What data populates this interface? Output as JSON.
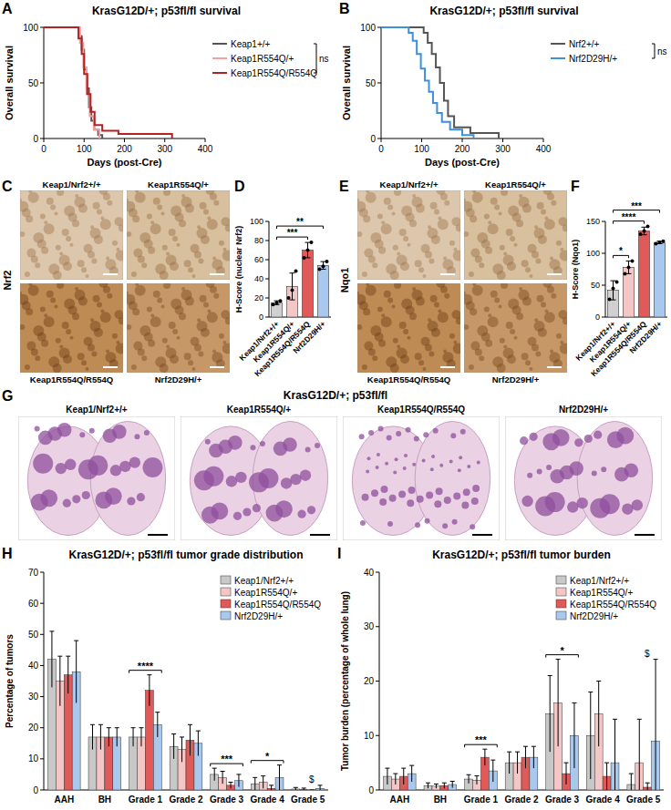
{
  "chart_data": [
    {
      "panel": "A",
      "type": "line",
      "line_style": "step",
      "title": "KrasG12D/+; p53fl/fl survival",
      "x_label": "Days (post-Cre)",
      "y_label": "Overall survival",
      "xlim": [
        0,
        400
      ],
      "xticks": [
        0,
        100,
        200,
        300,
        400
      ],
      "ylim": [
        0,
        100
      ],
      "yticks": [
        0,
        50,
        100
      ],
      "legend": "right",
      "annotation": "ns",
      "series": [
        {
          "name": "Keap1+/+",
          "color": "#555555",
          "x": [
            0,
            80,
            88,
            94,
            100,
            106,
            112,
            118,
            125,
            135,
            145
          ],
          "values": [
            100,
            100,
            92,
            80,
            62,
            45,
            28,
            16,
            8,
            3,
            0
          ]
        },
        {
          "name": "Keap1R554Q/+",
          "color": "#f4a0a0",
          "x": [
            0,
            82,
            90,
            98,
            106,
            114,
            124,
            138
          ],
          "values": [
            100,
            100,
            86,
            64,
            40,
            20,
            8,
            0
          ]
        },
        {
          "name": "Keap1R554Q/R554Q",
          "color": "#b22222",
          "x": [
            0,
            76,
            86,
            94,
            100,
            108,
            116,
            126,
            145,
            185,
            318
          ],
          "values": [
            100,
            100,
            90,
            76,
            58,
            40,
            24,
            12,
            7,
            4,
            0
          ]
        }
      ]
    },
    {
      "panel": "B",
      "type": "line",
      "line_style": "step",
      "title": "KrasG12D/+; p53fl/fl survival",
      "x_label": "Days (post-Cre)",
      "y_label": "Overall survival",
      "xlim": [
        0,
        400
      ],
      "xticks": [
        0,
        100,
        200,
        300,
        400
      ],
      "ylim": [
        0,
        100
      ],
      "yticks": [
        0,
        50,
        100
      ],
      "legend": "right",
      "annotation": "ns",
      "series": [
        {
          "name": "Nrf2+/+",
          "color": "#555555",
          "x": [
            0,
            95,
            105,
            115,
            125,
            135,
            145,
            155,
            165,
            180,
            220,
            290
          ],
          "values": [
            100,
            100,
            95,
            86,
            76,
            64,
            50,
            34,
            20,
            10,
            5,
            0
          ]
        },
        {
          "name": "Nrf2D29H/+",
          "color": "#3d8fe0",
          "x": [
            0,
            68,
            78,
            88,
            98,
            108,
            118,
            128,
            138,
            150,
            170,
            200,
            228
          ],
          "values": [
            100,
            95,
            88,
            76,
            63,
            52,
            42,
            32,
            23,
            15,
            8,
            3,
            0
          ]
        }
      ]
    },
    {
      "panel": "D",
      "type": "bar",
      "y_label": "H-Score (nuclear Nrf2)",
      "categories": [
        "Keap1/Nrf2+/+",
        "Keap1R554Q/+",
        "Keap1R554Q/R554Q",
        "Nrf2D29H/+"
      ],
      "values": [
        15,
        32,
        70,
        54
      ],
      "errors": [
        2,
        14,
        8,
        4
      ],
      "points": [
        [
          13,
          15,
          17
        ],
        [
          20,
          28,
          48
        ],
        [
          62,
          70,
          78
        ],
        [
          50,
          53,
          58
        ]
      ],
      "colors": [
        "#d0d0d0",
        "#f5c6c6",
        "#e05a5a",
        "#a8c8ee"
      ],
      "ylim": [
        0,
        100
      ],
      "yticks": [
        0,
        20,
        40,
        60,
        80,
        100
      ],
      "significance": [
        {
          "between": [
            "Keap1/Nrf2+/+",
            "Keap1R554Q/R554Q"
          ],
          "label": "***"
        },
        {
          "between": [
            "Keap1/Nrf2+/+",
            "Nrf2D29H/+"
          ],
          "label": "**"
        }
      ]
    },
    {
      "panel": "F",
      "type": "bar",
      "y_label": "H-Score (Nqo1)",
      "categories": [
        "Keap1/Nrf2+/+",
        "Keap1R554Q/+",
        "Keap1R554Q/R554Q",
        "Nrf2D29H/+"
      ],
      "values": [
        42,
        78,
        135,
        117
      ],
      "errors": [
        15,
        10,
        6,
        2
      ],
      "points": [
        [
          28,
          45,
          55
        ],
        [
          68,
          78,
          88
        ],
        [
          130,
          135,
          142
        ],
        [
          115,
          117,
          119
        ]
      ],
      "colors": [
        "#d0d0d0",
        "#f5c6c6",
        "#e05a5a",
        "#a8c8ee"
      ],
      "ylim": [
        0,
        150
      ],
      "yticks": [
        0,
        50,
        100,
        150
      ],
      "significance": [
        {
          "between": [
            "Keap1/Nrf2+/+",
            "Keap1R554Q/+"
          ],
          "label": "*"
        },
        {
          "between": [
            "Keap1/Nrf2+/+",
            "Keap1R554Q/R554Q"
          ],
          "label": "****"
        },
        {
          "between": [
            "Keap1/Nrf2+/+",
            "Nrf2D29H/+"
          ],
          "label": "***"
        }
      ]
    },
    {
      "panel": "H",
      "type": "bar",
      "title": "KrasG12D/+; p53fl/fl tumor grade distribution",
      "y_label": "Percentage of tumors",
      "categories": [
        "AAH",
        "BH",
        "Grade 1",
        "Grade 2",
        "Grade 3",
        "Grade 4",
        "Grade 5"
      ],
      "ylim": [
        0,
        70
      ],
      "yticks": [
        0,
        10,
        20,
        30,
        40,
        50,
        60,
        70
      ],
      "legend": "top-right",
      "series": [
        {
          "name": "Keap1/Nrf2+/+",
          "color": "#c8c8c8",
          "values": [
            42,
            17,
            17,
            14,
            5,
            2,
            0.3
          ],
          "errors": [
            9,
            4,
            3,
            4,
            2,
            2,
            0.5
          ]
        },
        {
          "name": "Keap1R554Q/+",
          "color": "#f5c6c6",
          "values": [
            35,
            17,
            17,
            13,
            4,
            2.5,
            0.2
          ],
          "errors": [
            8,
            4,
            3,
            4,
            2,
            2,
            0.4
          ]
        },
        {
          "name": "Keap1R554Q/R554Q",
          "color": "#e05a5a",
          "values": [
            37,
            17,
            32,
            16,
            1.5,
            0.5,
            0
          ],
          "errors": [
            6,
            3,
            5,
            5,
            1,
            1,
            0
          ]
        },
        {
          "name": "Nrf2D29H/+",
          "color": "#a8c8ee",
          "values": [
            38,
            17,
            21,
            15,
            3,
            4,
            0.5
          ],
          "errors": [
            10,
            3,
            4,
            4,
            2,
            4,
            1
          ]
        }
      ],
      "significance": [
        {
          "category": "Grade 1",
          "label": "****"
        },
        {
          "category": "Grade 3",
          "label": "***"
        },
        {
          "category": "Grade 4",
          "label": "*"
        }
      ],
      "annotations": [
        {
          "category": "Grade 5",
          "label": "$"
        }
      ]
    },
    {
      "panel": "I",
      "type": "bar",
      "title": "KrasG12D/+; p53fl/fl tumor burden",
      "y_label": "Tumor burden (percentage of whole lung)",
      "categories": [
        "AAH",
        "BH",
        "Grade 1",
        "Grade 2",
        "Grade 3",
        "Grade 4",
        "Grade 5"
      ],
      "ylim": [
        0,
        40
      ],
      "yticks": [
        0,
        10,
        20,
        30,
        40
      ],
      "legend": "top-right",
      "series": [
        {
          "name": "Keap1/Nrf2+/+",
          "color": "#c8c8c8",
          "values": [
            2.5,
            0.8,
            2,
            5,
            14,
            10,
            1
          ],
          "errors": [
            1.5,
            0.5,
            0.8,
            2,
            7,
            8,
            2
          ]
        },
        {
          "name": "Keap1R554Q/+",
          "color": "#f5c6c6",
          "values": [
            2,
            0.7,
            1.8,
            5,
            16,
            14,
            5
          ],
          "errors": [
            1,
            0.4,
            0.8,
            2,
            8,
            6,
            8
          ]
        },
        {
          "name": "Keap1R554Q/R554Q",
          "color": "#e05a5a",
          "values": [
            2.5,
            0.8,
            6,
            6,
            3,
            2.5,
            0.5
          ],
          "errors": [
            1.5,
            0.5,
            1.5,
            2,
            2,
            2.5,
            0.8
          ]
        },
        {
          "name": "Nrf2D29H/+",
          "color": "#a8c8ee",
          "values": [
            3,
            1,
            3.5,
            6,
            10,
            5,
            9
          ],
          "errors": [
            1.5,
            0.6,
            2,
            2,
            6,
            8,
            15
          ]
        }
      ],
      "significance": [
        {
          "category": "Grade 1",
          "label": "***"
        },
        {
          "category": "Grade 3",
          "label": "*"
        }
      ],
      "annotations": [
        {
          "category": "Grade 5",
          "label": "$"
        }
      ]
    }
  ],
  "image_panels": [
    {
      "panel": "C",
      "stain": "Nrf2",
      "labels": [
        "Keap1/Nrf2+/+",
        "Keap1R554Q/+",
        "Keap1R554Q/R554Q",
        "Nrf2D29H/+"
      ]
    },
    {
      "panel": "E",
      "stain": "Nqo1",
      "labels": [
        "Keap1/Nrf2+/+",
        "Keap1R554Q/+",
        "Keap1R554Q/R554Q",
        "Nrf2D29H/+"
      ]
    },
    {
      "panel": "G",
      "title": "KrasG12D/+; p53fl/fl",
      "labels": [
        "Keap1/Nrf2+/+",
        "Keap1R554Q/+",
        "Keap1R554Q/R554Q",
        "Nrf2D29H/+"
      ]
    }
  ]
}
